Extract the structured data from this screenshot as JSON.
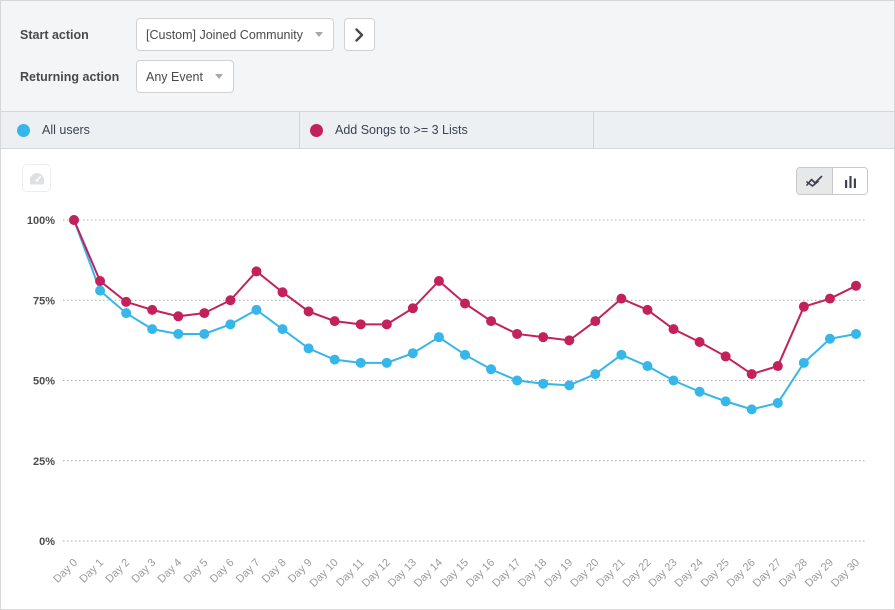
{
  "controls": {
    "start_action": {
      "label": "Start action",
      "value": "[Custom] Joined Community"
    },
    "returning_action": {
      "label": "Returning action",
      "value": "Any Event"
    }
  },
  "legend": {
    "items": [
      {
        "label": "All users",
        "color": "#36B6E9"
      },
      {
        "label": "Add Songs to >= 3 Lists",
        "color": "#C2215C"
      }
    ]
  },
  "icons": {
    "dropdown_caret": "chevron-down",
    "next": "chevron-right",
    "gauge": "gauge",
    "line_view": "line-chart",
    "bar_view": "bar-chart"
  },
  "colors": {
    "all_users": "#36B6E9",
    "add_songs": "#C2215C",
    "controls_bg": "#f4f5f7",
    "legend_bg": "#edf0f3",
    "grid": "#ababab",
    "x_label": "#9b9b9b",
    "y_label": "#4c4c4c"
  },
  "chart_data": {
    "type": "line",
    "title": "",
    "xlabel": "",
    "ylabel": "",
    "ylim": [
      0,
      100
    ],
    "grid": "dotted-horizontal",
    "legend_position": "top-bar",
    "x": [
      "Day 0",
      "Day 1",
      "Day 2",
      "Day 3",
      "Day 4",
      "Day 5",
      "Day 6",
      "Day 7",
      "Day 8",
      "Day 9",
      "Day 10",
      "Day 11",
      "Day 12",
      "Day 13",
      "Day 14",
      "Day 15",
      "Day 16",
      "Day 17",
      "Day 18",
      "Day 19",
      "Day 20",
      "Day 21",
      "Day 22",
      "Day 23",
      "Day 24",
      "Day 25",
      "Day 26",
      "Day 27",
      "Day 28",
      "Day 29",
      "Day 30"
    ],
    "y_ticks": [
      {
        "value": 100,
        "label": "100%"
      },
      {
        "value": 75,
        "label": "75%"
      },
      {
        "value": 50,
        "label": "50%"
      },
      {
        "value": 25,
        "label": "25%"
      },
      {
        "value": 0,
        "label": "0%"
      }
    ],
    "series": [
      {
        "name": "All users",
        "color": "#36B6E9",
        "values": [
          100,
          78,
          71,
          66,
          64.5,
          64.5,
          67.5,
          72,
          66,
          60,
          56.5,
          55.5,
          55.5,
          58.5,
          63.5,
          58,
          53.5,
          50,
          49,
          48.5,
          52,
          58,
          54.5,
          50,
          46.5,
          43.5,
          41,
          43,
          55.5,
          63,
          64.5
        ]
      },
      {
        "name": "Add Songs to >= 3 Lists",
        "color": "#C2215C",
        "values": [
          100,
          81,
          74.5,
          72,
          70,
          71,
          75,
          84,
          77.5,
          71.5,
          68.5,
          67.5,
          67.5,
          72.5,
          81,
          74,
          68.5,
          64.5,
          63.5,
          62.5,
          68.5,
          75.5,
          72,
          66,
          62,
          57.5,
          52,
          54.5,
          73,
          75.5,
          79.5
        ]
      }
    ]
  }
}
